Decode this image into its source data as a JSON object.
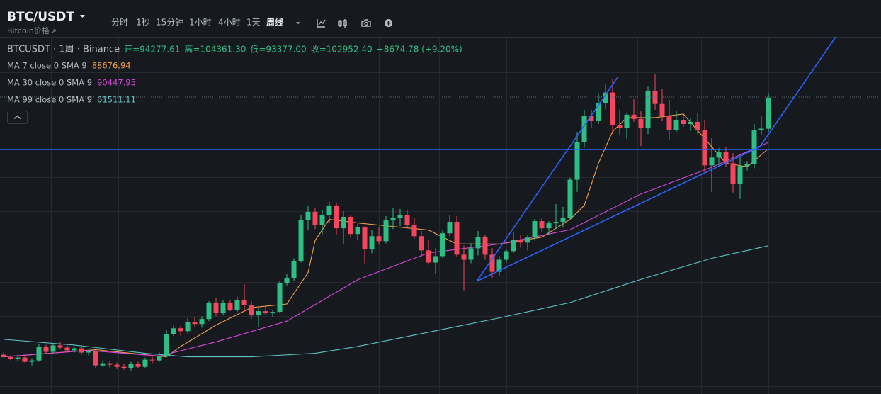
{
  "header": {
    "title": "BTC/USDT",
    "subtitle": "Bitcoin价格"
  },
  "toolbar": {
    "intervals": [
      "分时",
      "1秒",
      "15分钟",
      "1小时",
      "4小时",
      "1天",
      "周线"
    ],
    "active": 6
  },
  "legend": {
    "symbol": "BTCUSDT · 1周 · Binance",
    "fields": [
      "开=94277.61",
      "高=104361.30",
      "低=93377.00",
      "收=102952.40"
    ],
    "change": "+8674.78 (+9.20%)"
  },
  "chart_data": {
    "type": "candlestick",
    "up_color": "#2ebd85",
    "down_color": "#f6465d",
    "ylim": [
      20000,
      120000
    ],
    "open": [
      31000,
      30300,
      29800,
      30200,
      29000,
      29400,
      33200,
      31800,
      33600,
      33000,
      32200,
      32800,
      31600,
      31900,
      28000,
      28600,
      28200,
      27600,
      27200,
      28400,
      27600,
      29600,
      29400,
      30600,
      36800,
      38400,
      37600,
      40200,
      39600,
      41000,
      45600,
      42800,
      45600,
      43600,
      46400,
      45000,
      42000,
      43200,
      42600,
      43000,
      51000,
      52400,
      57200,
      68800,
      71000,
      67400,
      70200,
      72800,
      66400,
      69600,
      64800,
      66800,
      60600,
      64200,
      62800,
      68600,
      69400,
      70200,
      67200,
      64200,
      60200,
      56800,
      58600,
      65000,
      68200,
      59000,
      57600,
      60800,
      64000,
      59000,
      54200,
      57600,
      60000,
      63200,
      62400,
      63800,
      68400,
      66400,
      67800,
      68200,
      69400,
      80000,
      90600,
      97800,
      96400,
      101400,
      104400,
      95200,
      94400,
      98200,
      97000,
      94600,
      104800,
      101200,
      97800,
      94000,
      96600,
      95600,
      96200,
      94000,
      84000,
      86200,
      87800,
      84600,
      78800,
      83800,
      84400,
      93800,
      94277.61
    ],
    "high": [
      31600,
      30900,
      30600,
      30800,
      30000,
      34000,
      33800,
      34200,
      34500,
      33600,
      33200,
      33400,
      32400,
      32300,
      29400,
      29200,
      28800,
      28400,
      29000,
      29000,
      30200,
      30400,
      31600,
      38000,
      39200,
      39000,
      41200,
      41400,
      41800,
      46000,
      46800,
      46200,
      46400,
      47200,
      50800,
      46000,
      44000,
      44600,
      43600,
      51600,
      53600,
      58000,
      70200,
      72600,
      72200,
      71600,
      73800,
      73600,
      71200,
      70200,
      67600,
      67000,
      66000,
      66800,
      69800,
      72000,
      71800,
      71400,
      69200,
      65600,
      63200,
      60800,
      65800,
      70000,
      69800,
      61600,
      62200,
      65600,
      64600,
      60800,
      58600,
      60600,
      65400,
      64600,
      64600,
      69000,
      69200,
      68400,
      73200,
      72400,
      80600,
      93400,
      99600,
      99600,
      104200,
      106600,
      108200,
      99600,
      98800,
      102600,
      99200,
      106000,
      109600,
      105400,
      102400,
      99400,
      98200,
      97200,
      98800,
      96600,
      91600,
      88800,
      89200,
      87400,
      86600,
      85200,
      95600,
      97800,
      104361.3
    ],
    "low": [
      30200,
      29400,
      29200,
      28800,
      28000,
      29000,
      31400,
      31200,
      32600,
      31800,
      31600,
      31000,
      30800,
      27200,
      27600,
      27400,
      27000,
      26800,
      26600,
      27200,
      27200,
      28600,
      29000,
      30200,
      36200,
      36400,
      37000,
      38800,
      38600,
      40400,
      41800,
      42200,
      43200,
      43000,
      43000,
      41000,
      38800,
      42000,
      41600,
      42800,
      50400,
      51600,
      56800,
      66000,
      66200,
      64800,
      67800,
      64600,
      61800,
      63800,
      63000,
      56600,
      59400,
      61800,
      62200,
      66200,
      67000,
      66800,
      63600,
      58400,
      56200,
      53600,
      58000,
      64200,
      58400,
      49000,
      56600,
      58800,
      57600,
      52600,
      53000,
      56800,
      59400,
      61000,
      60200,
      63000,
      65400,
      64600,
      66200,
      66600,
      68800,
      76600,
      89000,
      94400,
      95600,
      99800,
      92800,
      92600,
      91400,
      96200,
      89400,
      92800,
      99600,
      96400,
      91200,
      93400,
      94800,
      93600,
      92800,
      82200,
      76600,
      83600,
      83600,
      76400,
      74600,
      82600,
      83200,
      92600,
      93377
    ],
    "close": [
      30300,
      29800,
      30200,
      29000,
      29400,
      33200,
      31800,
      33600,
      33000,
      32200,
      32800,
      31600,
      31900,
      28000,
      28600,
      28200,
      27600,
      27200,
      28400,
      27600,
      29600,
      29400,
      30600,
      36800,
      38400,
      37600,
      40200,
      39600,
      41000,
      45600,
      42800,
      45600,
      43600,
      46400,
      45000,
      42000,
      43200,
      42600,
      43000,
      51000,
      52400,
      57200,
      68800,
      71000,
      67400,
      70200,
      72800,
      66400,
      69600,
      64800,
      66800,
      60600,
      64200,
      62800,
      68600,
      69400,
      70200,
      67200,
      64200,
      60200,
      56800,
      58600,
      65000,
      68200,
      59000,
      57600,
      60800,
      64000,
      59000,
      54200,
      57600,
      60000,
      63200,
      62400,
      63800,
      68400,
      66400,
      67800,
      68200,
      69400,
      80000,
      90600,
      97800,
      96400,
      101400,
      104400,
      95200,
      94400,
      98200,
      97000,
      94600,
      104800,
      101200,
      97800,
      94000,
      96600,
      95600,
      96200,
      94000,
      84000,
      86200,
      87800,
      84600,
      78800,
      83800,
      84400,
      93800,
      94300,
      102952.4
    ],
    "indicators": [
      {
        "name": "MA 7 close 0 SMA 9",
        "value_label": "88676.94",
        "color": "#f0a04b",
        "x": [
          0,
          13,
          23,
          25,
          30,
          35,
          40,
          43,
          44,
          46,
          50,
          55,
          60,
          64,
          70,
          76,
          80,
          82,
          84,
          86,
          88,
          92,
          96,
          99,
          102,
          105,
          108
        ],
        "values": [
          30400,
          32400,
          30400,
          33300,
          39300,
          44200,
          45200,
          54000,
          63000,
          68900,
          67900,
          66900,
          65900,
          62000,
          62000,
          63900,
          68900,
          72800,
          84600,
          93500,
          97400,
          97400,
          98400,
          91500,
          84600,
          83600,
          88676.94
        ]
      },
      {
        "name": "MA 30 close 0 SMA 9",
        "value_label": "90447.95",
        "color": "#d548d8",
        "x": [
          0,
          12,
          22,
          30,
          40,
          50,
          60,
          70,
          80,
          90,
          100,
          108
        ],
        "values": [
          30400,
          32200,
          30600,
          34600,
          40400,
          52000,
          59500,
          62000,
          66000,
          76000,
          83500,
          90447.95
        ]
      },
      {
        "name": "MA 99 close 0 SMA 9",
        "value_label": "61511.11",
        "color": "#5fc3c4",
        "x": [
          0,
          10,
          20,
          26,
          35,
          44,
          50,
          60,
          70,
          80,
          90,
          100,
          108
        ],
        "values": [
          35300,
          33700,
          31400,
          30400,
          30400,
          31400,
          33300,
          37300,
          41300,
          45600,
          52100,
          58000,
          61511.11
        ]
      }
    ]
  }
}
